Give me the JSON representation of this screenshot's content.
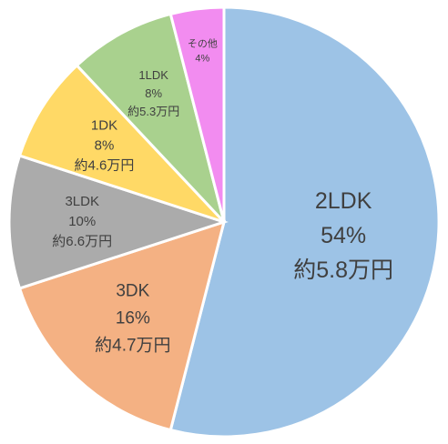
{
  "chart_data": {
    "type": "pie",
    "start_angle_deg": 0,
    "direction": "clockwise",
    "slices": [
      {
        "name": "2LDK",
        "percent_label": "54%",
        "value": 54,
        "rent_label": "約5.8万円",
        "color": "#9DC3E6"
      },
      {
        "name": "3DK",
        "percent_label": "16%",
        "value": 16,
        "rent_label": "約4.7万円",
        "color": "#F4B183"
      },
      {
        "name": "3LDK",
        "percent_label": "10%",
        "value": 10,
        "rent_label": "約6.6万円",
        "color": "#ABABAB"
      },
      {
        "name": "1DK",
        "percent_label": "8%",
        "value": 8,
        "rent_label": "約4.6万円",
        "color": "#FFD966"
      },
      {
        "name": "1LDK",
        "percent_label": "8%",
        "value": 8,
        "rent_label": "約5.3万円",
        "color": "#A9D18E"
      },
      {
        "name": "その他",
        "percent_label": "4%",
        "value": 4,
        "rent_label": "",
        "color": "#F28CF0"
      }
    ]
  }
}
